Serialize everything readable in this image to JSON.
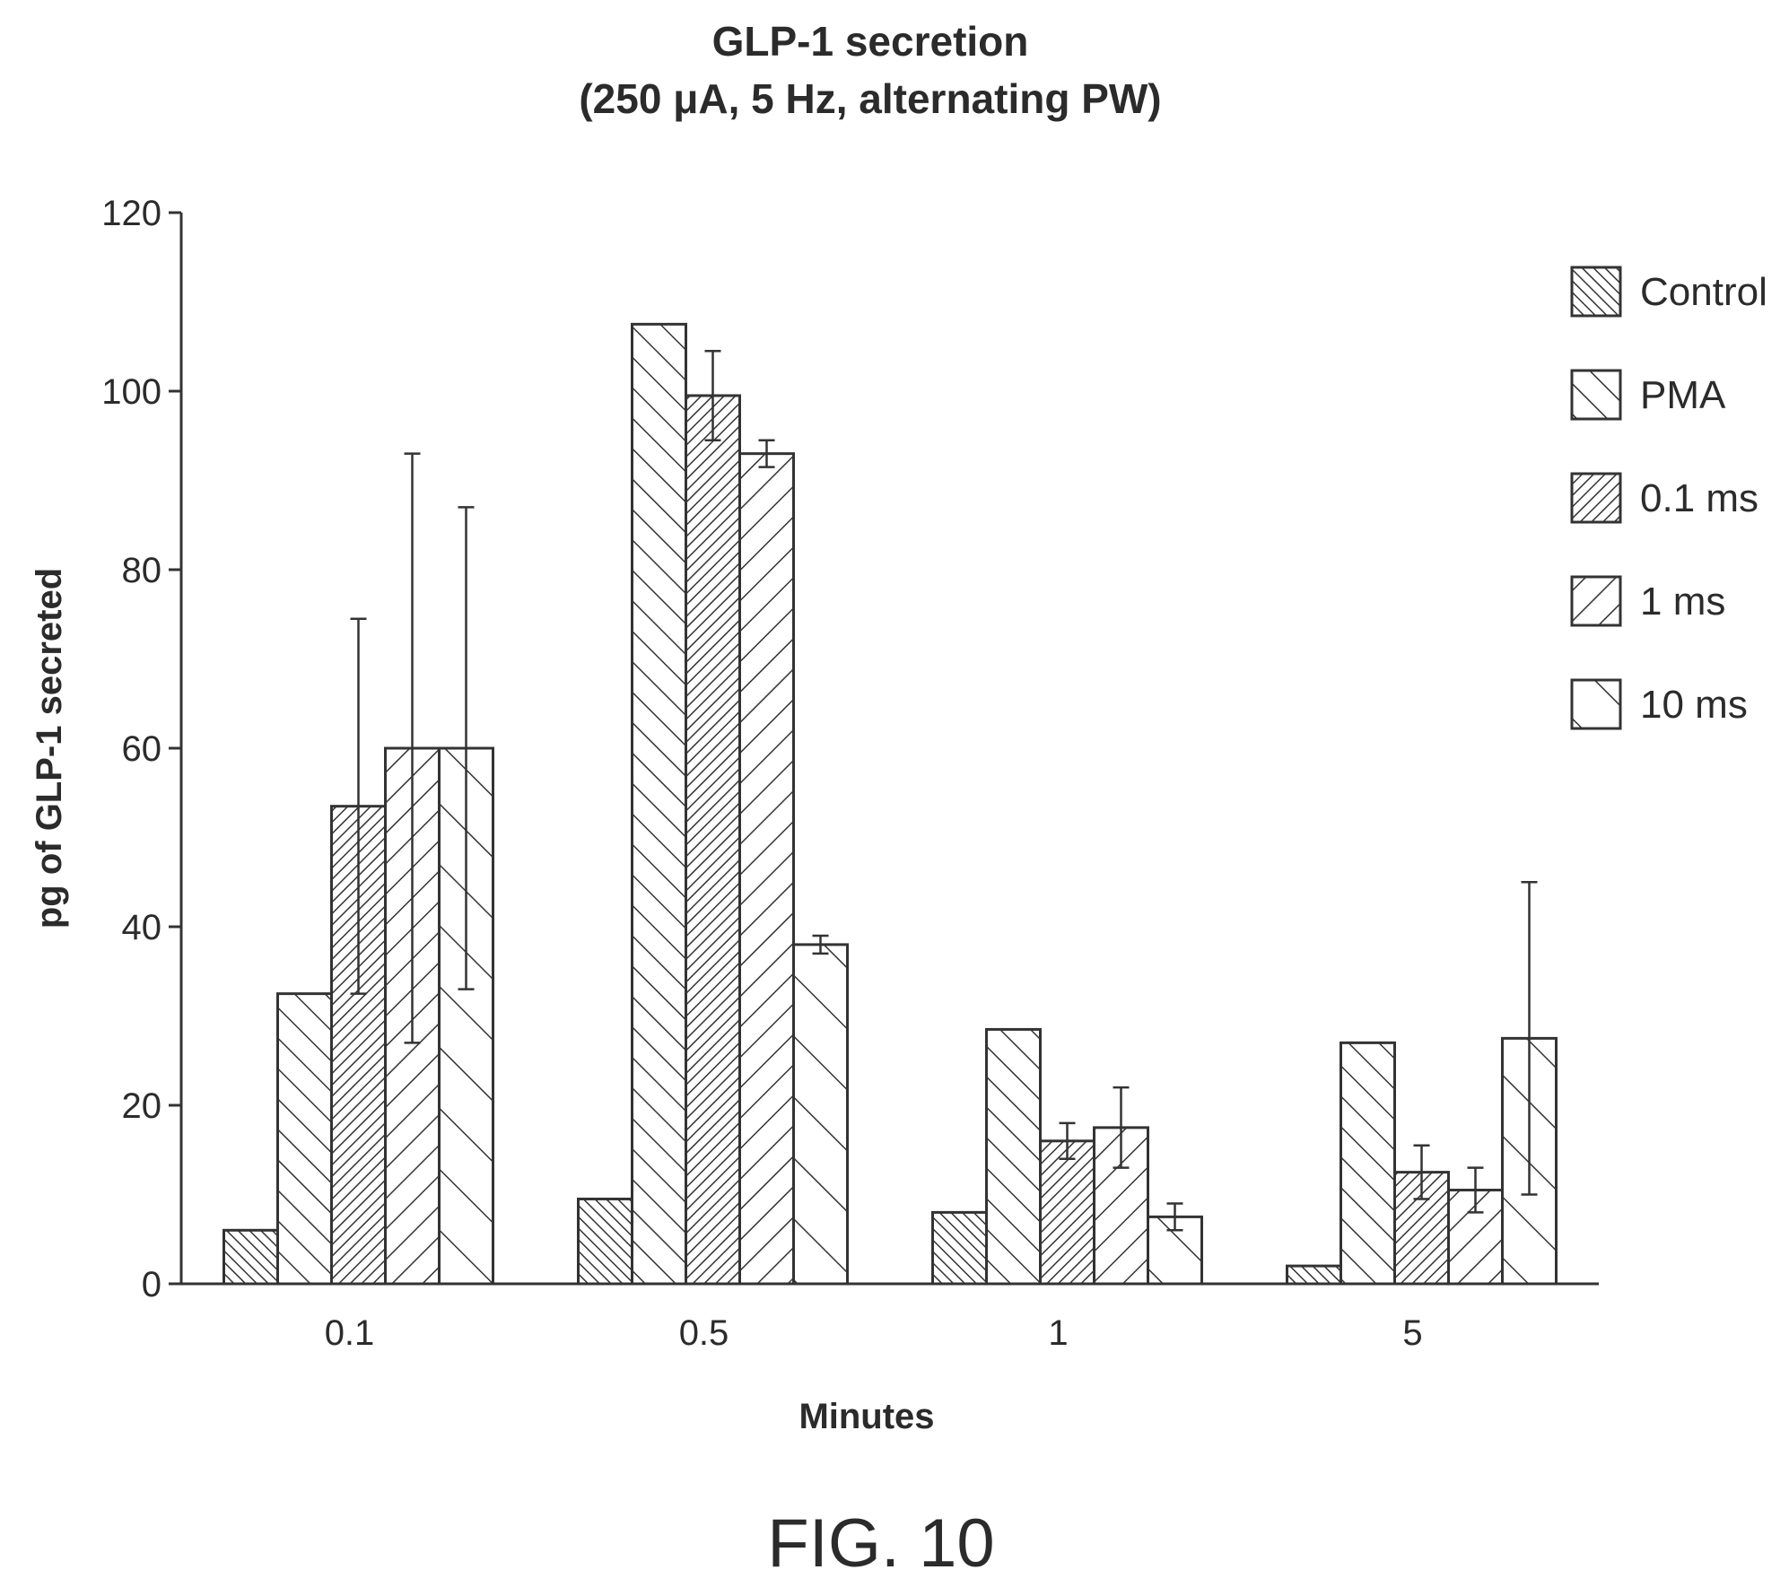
{
  "chart_data": {
    "type": "bar",
    "title": "GLP-1 secretion",
    "subtitle": "(250 μA, 5 Hz, alternating PW)",
    "xlabel": "Minutes",
    "ylabel": "pg of GLP-1 secreted",
    "categories": [
      "0.1",
      "0.5",
      "1",
      "5"
    ],
    "ylim": [
      0,
      120
    ],
    "yticks": [
      "0",
      "20",
      "40",
      "60",
      "80",
      "100",
      "120"
    ],
    "grid": false,
    "legend_position": "top-right",
    "series": [
      {
        "name": "Control",
        "values": [
          6,
          9.5,
          8,
          2
        ],
        "error": [
          null,
          null,
          null,
          null
        ]
      },
      {
        "name": "PMA",
        "values": [
          32.5,
          107.5,
          28.5,
          27
        ],
        "error": [
          null,
          null,
          null,
          null
        ]
      },
      {
        "name": "0.1 ms",
        "values": [
          53.5,
          99.5,
          16,
          12.5
        ],
        "error": [
          21,
          5,
          2,
          3
        ]
      },
      {
        "name": "1 ms",
        "values": [
          60,
          93,
          17.5,
          10.5
        ],
        "error": [
          33,
          1.5,
          4.5,
          2.5
        ]
      },
      {
        "name": "10 ms",
        "values": [
          60,
          38,
          7.5,
          27.5
        ],
        "error": [
          27,
          1,
          1.5,
          17.5
        ]
      }
    ]
  },
  "caption": "FIG. 10"
}
